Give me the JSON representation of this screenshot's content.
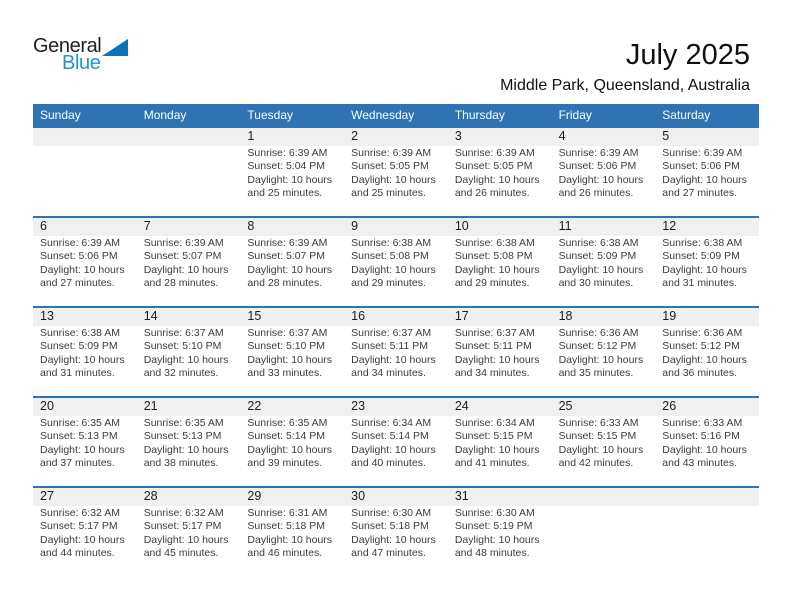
{
  "logo": {
    "text_top": "General",
    "text_bottom": "Blue"
  },
  "header": {
    "title": "July 2025",
    "subtitle": "Middle Park, Queensland, Australia"
  },
  "colors": {
    "accent_blue": "#2e74b5",
    "band_gray": "#f0f0f0",
    "logo_text_blue": "#1e93d6",
    "logo_triangle_blue": "#0f72b6"
  },
  "calendar": {
    "day_headers": [
      "Sunday",
      "Monday",
      "Tuesday",
      "Wednesday",
      "Thursday",
      "Friday",
      "Saturday"
    ],
    "labels": {
      "sunrise": "Sunrise:",
      "sunset": "Sunset:",
      "daylight": "Daylight:"
    },
    "weeks": [
      [
        null,
        null,
        {
          "day": "1",
          "sunrise": "6:39 AM",
          "sunset": "5:04 PM",
          "daylight": "10 hours and 25 minutes."
        },
        {
          "day": "2",
          "sunrise": "6:39 AM",
          "sunset": "5:05 PM",
          "daylight": "10 hours and 25 minutes."
        },
        {
          "day": "3",
          "sunrise": "6:39 AM",
          "sunset": "5:05 PM",
          "daylight": "10 hours and 26 minutes."
        },
        {
          "day": "4",
          "sunrise": "6:39 AM",
          "sunset": "5:06 PM",
          "daylight": "10 hours and 26 minutes."
        },
        {
          "day": "5",
          "sunrise": "6:39 AM",
          "sunset": "5:06 PM",
          "daylight": "10 hours and 27 minutes."
        }
      ],
      [
        {
          "day": "6",
          "sunrise": "6:39 AM",
          "sunset": "5:06 PM",
          "daylight": "10 hours and 27 minutes."
        },
        {
          "day": "7",
          "sunrise": "6:39 AM",
          "sunset": "5:07 PM",
          "daylight": "10 hours and 28 minutes."
        },
        {
          "day": "8",
          "sunrise": "6:39 AM",
          "sunset": "5:07 PM",
          "daylight": "10 hours and 28 minutes."
        },
        {
          "day": "9",
          "sunrise": "6:38 AM",
          "sunset": "5:08 PM",
          "daylight": "10 hours and 29 minutes."
        },
        {
          "day": "10",
          "sunrise": "6:38 AM",
          "sunset": "5:08 PM",
          "daylight": "10 hours and 29 minutes."
        },
        {
          "day": "11",
          "sunrise": "6:38 AM",
          "sunset": "5:09 PM",
          "daylight": "10 hours and 30 minutes."
        },
        {
          "day": "12",
          "sunrise": "6:38 AM",
          "sunset": "5:09 PM",
          "daylight": "10 hours and 31 minutes."
        }
      ],
      [
        {
          "day": "13",
          "sunrise": "6:38 AM",
          "sunset": "5:09 PM",
          "daylight": "10 hours and 31 minutes."
        },
        {
          "day": "14",
          "sunrise": "6:37 AM",
          "sunset": "5:10 PM",
          "daylight": "10 hours and 32 minutes."
        },
        {
          "day": "15",
          "sunrise": "6:37 AM",
          "sunset": "5:10 PM",
          "daylight": "10 hours and 33 minutes."
        },
        {
          "day": "16",
          "sunrise": "6:37 AM",
          "sunset": "5:11 PM",
          "daylight": "10 hours and 34 minutes."
        },
        {
          "day": "17",
          "sunrise": "6:37 AM",
          "sunset": "5:11 PM",
          "daylight": "10 hours and 34 minutes."
        },
        {
          "day": "18",
          "sunrise": "6:36 AM",
          "sunset": "5:12 PM",
          "daylight": "10 hours and 35 minutes."
        },
        {
          "day": "19",
          "sunrise": "6:36 AM",
          "sunset": "5:12 PM",
          "daylight": "10 hours and 36 minutes."
        }
      ],
      [
        {
          "day": "20",
          "sunrise": "6:35 AM",
          "sunset": "5:13 PM",
          "daylight": "10 hours and 37 minutes."
        },
        {
          "day": "21",
          "sunrise": "6:35 AM",
          "sunset": "5:13 PM",
          "daylight": "10 hours and 38 minutes."
        },
        {
          "day": "22",
          "sunrise": "6:35 AM",
          "sunset": "5:14 PM",
          "daylight": "10 hours and 39 minutes."
        },
        {
          "day": "23",
          "sunrise": "6:34 AM",
          "sunset": "5:14 PM",
          "daylight": "10 hours and 40 minutes."
        },
        {
          "day": "24",
          "sunrise": "6:34 AM",
          "sunset": "5:15 PM",
          "daylight": "10 hours and 41 minutes."
        },
        {
          "day": "25",
          "sunrise": "6:33 AM",
          "sunset": "5:15 PM",
          "daylight": "10 hours and 42 minutes."
        },
        {
          "day": "26",
          "sunrise": "6:33 AM",
          "sunset": "5:16 PM",
          "daylight": "10 hours and 43 minutes."
        }
      ],
      [
        {
          "day": "27",
          "sunrise": "6:32 AM",
          "sunset": "5:17 PM",
          "daylight": "10 hours and 44 minutes."
        },
        {
          "day": "28",
          "sunrise": "6:32 AM",
          "sunset": "5:17 PM",
          "daylight": "10 hours and 45 minutes."
        },
        {
          "day": "29",
          "sunrise": "6:31 AM",
          "sunset": "5:18 PM",
          "daylight": "10 hours and 46 minutes."
        },
        {
          "day": "30",
          "sunrise": "6:30 AM",
          "sunset": "5:18 PM",
          "daylight": "10 hours and 47 minutes."
        },
        {
          "day": "31",
          "sunrise": "6:30 AM",
          "sunset": "5:19 PM",
          "daylight": "10 hours and 48 minutes."
        },
        null,
        null
      ]
    ]
  }
}
